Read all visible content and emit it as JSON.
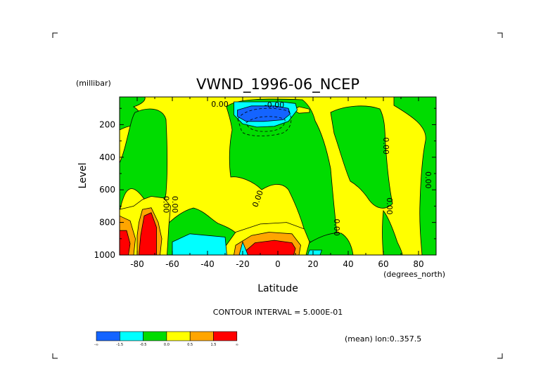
{
  "chart_data": {
    "type": "heatmap",
    "title": "VWND_1996-06_NCEP",
    "xlabel": "Latitude",
    "ylabel": "Level",
    "x_units": "(degrees_north)",
    "y_units": "(millibar)",
    "xlim": [
      -90,
      90
    ],
    "ylim": [
      1000,
      30
    ],
    "y_reversed": true,
    "xticks": [
      -80,
      -60,
      -40,
      -20,
      0,
      20,
      40,
      60,
      80
    ],
    "yticks": [
      200,
      400,
      600,
      800,
      1000
    ],
    "contour_interval_text": "CONTOUR INTERVAL = 5.000E-01",
    "subset_text": "(mean) lon:0..357.5",
    "contour_labels": [
      {
        "text": "0.00",
        "x": -33,
        "y": 90
      },
      {
        "text": "-0.00",
        "x": -2,
        "y": 95
      },
      {
        "text": "0.00",
        "x": -60,
        "y": 690
      },
      {
        "text": "0.00",
        "x": -65,
        "y": 690
      },
      {
        "text": "0.00",
        "x": -10,
        "y": 660
      },
      {
        "text": "0.00",
        "x": 32,
        "y": 830
      },
      {
        "text": "0.00",
        "x": 60,
        "y": 330
      },
      {
        "text": "0.00",
        "x": 84,
        "y": 540
      },
      {
        "text": "0.00",
        "x": 62,
        "y": 700
      }
    ],
    "colorbar": {
      "levels": [
        "-∞",
        "-1.5",
        "-0.5",
        "0.0",
        "0.5",
        "1.5",
        "∞"
      ],
      "colors": [
        "#1464ff",
        "#00ffff",
        "#00dc00",
        "#ffff00",
        "#ffa500",
        "#ff0000"
      ]
    },
    "regions": [
      {
        "name": "south-polar-positive",
        "category": 4,
        "points": [
          [
            -90,
            720
          ],
          [
            -82,
            700
          ],
          [
            -77,
            660
          ],
          [
            -72,
            640
          ],
          [
            -65,
            650
          ],
          [
            -61,
            700
          ],
          [
            -62,
            820
          ],
          [
            -63,
            1000
          ],
          [
            -90,
            1000
          ]
        ]
      },
      {
        "name": "south-polar-strong",
        "category": 5,
        "points": [
          [
            -90,
            760
          ],
          [
            -84,
            790
          ],
          [
            -81,
            900
          ],
          [
            -82,
            1000
          ],
          [
            -90,
            1000
          ]
        ]
      },
      {
        "name": "south-polar-strong",
        "category": 5,
        "points": [
          [
            -77,
            720
          ],
          [
            -72,
            710
          ],
          [
            -68,
            800
          ],
          [
            -66,
            900
          ],
          [
            -67,
            1000
          ],
          [
            -80,
            1000
          ],
          [
            -80,
            880
          ],
          [
            -79,
            800
          ]
        ]
      },
      {
        "name": "south-polar-max",
        "category": 6,
        "points": [
          [
            -90,
            850
          ],
          [
            -86,
            850
          ],
          [
            -84,
            930
          ],
          [
            -85,
            1000
          ],
          [
            -90,
            1000
          ]
        ]
      },
      {
        "name": "south-polar-max",
        "category": 6,
        "points": [
          [
            -76,
            760
          ],
          [
            -72,
            740
          ],
          [
            -69,
            830
          ],
          [
            -69,
            1000
          ],
          [
            -79,
            1000
          ],
          [
            -78,
            880
          ]
        ]
      },
      {
        "name": "tropical-positive",
        "category": 4,
        "points": [
          [
            -30,
            950
          ],
          [
            -24,
            860
          ],
          [
            -10,
            810
          ],
          [
            5,
            800
          ],
          [
            15,
            840
          ],
          [
            18,
            920
          ],
          [
            16,
            1000
          ],
          [
            -30,
            1000
          ]
        ]
      },
      {
        "name": "tropical-strong",
        "category": 5,
        "points": [
          [
            -24,
            940
          ],
          [
            -15,
            880
          ],
          [
            -5,
            860
          ],
          [
            8,
            870
          ],
          [
            13,
            940
          ],
          [
            12,
            1000
          ],
          [
            -25,
            1000
          ]
        ]
      },
      {
        "name": "tropical-max",
        "category": 6,
        "points": [
          [
            -20,
            990
          ],
          [
            -13,
            925
          ],
          [
            -2,
            910
          ],
          [
            8,
            925
          ],
          [
            10,
            960
          ],
          [
            9,
            1000
          ],
          [
            -19,
            1000
          ]
        ]
      },
      {
        "name": "subtropical-upper-positive",
        "category": 4,
        "points": [
          [
            12,
            90
          ],
          [
            18,
            105
          ],
          [
            18,
            125
          ],
          [
            12,
            130
          ],
          [
            9,
            110
          ]
        ]
      },
      {
        "name": "midlat-south-negative",
        "category": 2,
        "points": [
          [
            -60,
            920
          ],
          [
            -50,
            870
          ],
          [
            -40,
            880
          ],
          [
            -30,
            890
          ],
          [
            -29,
            1000
          ],
          [
            -60,
            1000
          ]
        ]
      },
      {
        "name": "tropical-south-negative",
        "category": 2,
        "points": [
          [
            -20,
            920
          ],
          [
            -17,
            1000
          ],
          [
            -22,
            1000
          ]
        ]
      },
      {
        "name": "equatorial-lower-negative",
        "category": 2,
        "points": [
          [
            18,
            970
          ],
          [
            25,
            970
          ],
          [
            24,
            1000
          ],
          [
            17,
            1000
          ]
        ]
      },
      {
        "name": "upper-negative",
        "category": 2,
        "points": [
          [
            -25,
            60
          ],
          [
            -14,
            60
          ],
          [
            2,
            60
          ],
          [
            10,
            70
          ],
          [
            11,
            110
          ],
          [
            6,
            180
          ],
          [
            -2,
            210
          ],
          [
            -12,
            215
          ],
          [
            -20,
            195
          ],
          [
            -25,
            140
          ]
        ]
      },
      {
        "name": "upper-negative-core",
        "category": 1,
        "points": [
          [
            -23,
            110
          ],
          [
            -15,
            85
          ],
          [
            -2,
            85
          ],
          [
            6,
            100
          ],
          [
            7,
            135
          ],
          [
            3,
            170
          ],
          [
            -8,
            180
          ],
          [
            -18,
            180
          ],
          [
            -23,
            150
          ]
        ]
      }
    ]
  },
  "corner_marks": [
    {
      "name": "corner-mark-top-left",
      "x": 75,
      "y": 47,
      "dx": 1,
      "dy": 1
    },
    {
      "name": "corner-mark-top-right",
      "x": 714,
      "y": 47,
      "dx": -1,
      "dy": 1
    },
    {
      "name": "corner-mark-bottom-left",
      "x": 75,
      "y": 510,
      "dx": 1,
      "dy": -1
    },
    {
      "name": "corner-mark-bottom-right",
      "x": 714,
      "y": 510,
      "dx": -1,
      "dy": -1
    }
  ]
}
